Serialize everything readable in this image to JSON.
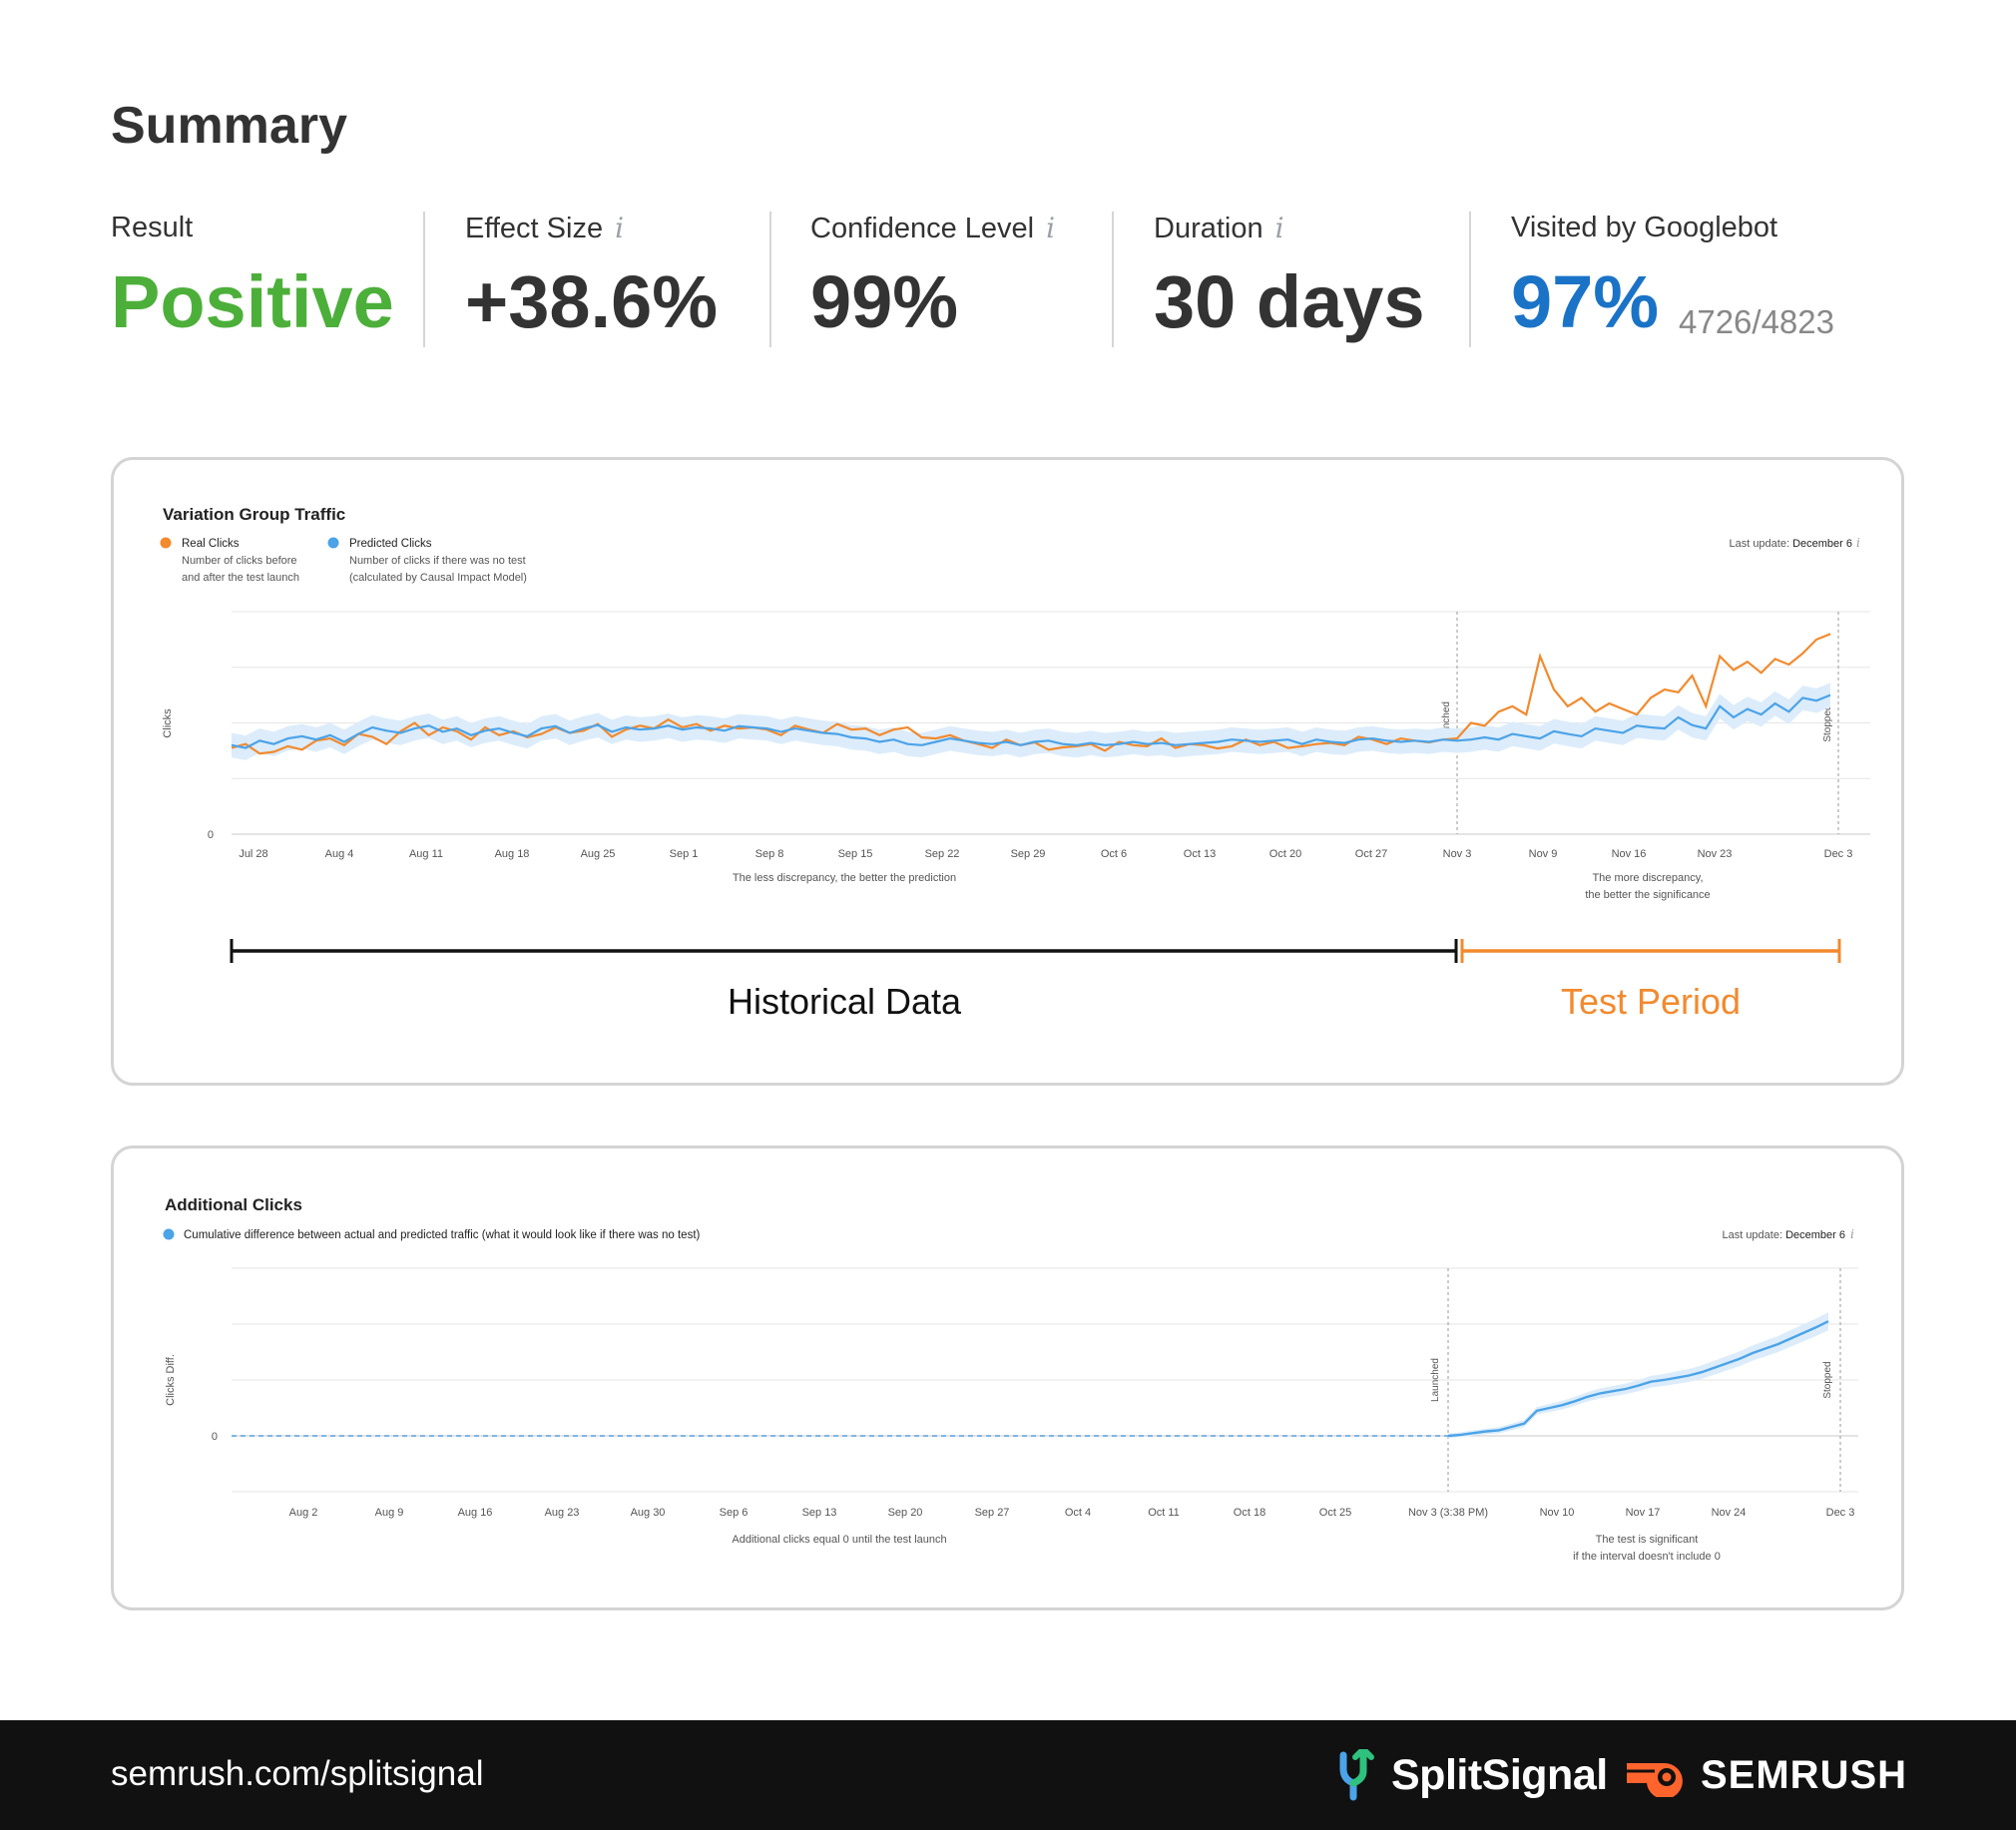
{
  "summary": {
    "title": "Summary",
    "metrics": [
      {
        "label": "Result",
        "value": "Positive",
        "color": "#4caf3a"
      },
      {
        "label": "Effect Size",
        "value": "+38.6%",
        "info": "i"
      },
      {
        "label": "Confidence Level",
        "value": "99%",
        "info": "i"
      },
      {
        "label": "Duration",
        "value": "30 days",
        "info": "i"
      },
      {
        "label": "Visited by Googlebot",
        "value": "97%",
        "sub": "4726/4823",
        "color": "#1a73c7"
      }
    ]
  },
  "colors": {
    "real": "#f28a2e",
    "predicted": "#4ba3e8",
    "band": "#dcecfb",
    "grid": "#e6e6e6",
    "historical": "#111111",
    "test_period": "#f28a2e"
  },
  "chart_data": [
    {
      "type": "line",
      "title": "Variation Group Traffic",
      "last_update_label": "Last update:",
      "last_update_value": "December 6",
      "ylabel": "Clicks",
      "yticks": [
        "0"
      ],
      "legend": [
        {
          "name": "Real Clicks",
          "desc1": "Number of clicks before",
          "desc2": "and after the test launch"
        },
        {
          "name": "Predicted Clicks",
          "desc1": "Number of clicks if there was no test",
          "desc2": "(calculated by Causal Impact Model)"
        }
      ],
      "xticks": [
        "Jul 28",
        "Aug 4",
        "Aug 11",
        "Aug 18",
        "Aug 25",
        "Sep 1",
        "Sep 8",
        "Sep 15",
        "Sep 22",
        "Sep 29",
        "Oct 6",
        "Oct 13",
        "Oct 20",
        "Oct 27",
        "Nov 3",
        "Nov 9",
        "Nov 16",
        "Nov 23",
        "Dec 3"
      ],
      "markers": [
        {
          "label": "Launched",
          "at": "Nov 3"
        },
        {
          "label": "Stopped",
          "at": "Dec 3"
        }
      ],
      "note_left": "The less discrepancy, the better the prediction",
      "note_right_1": "The more discrepancy,",
      "note_right_2": "the better the significance",
      "ylim": [
        0,
        4
      ],
      "series": [
        {
          "name": "Real Clicks",
          "values": [
            1.55,
            1.62,
            1.45,
            1.48,
            1.58,
            1.52,
            1.68,
            1.72,
            1.6,
            1.8,
            1.75,
            1.62,
            1.85,
            2.0,
            1.78,
            1.92,
            1.85,
            1.7,
            1.92,
            1.78,
            1.85,
            1.74,
            1.8,
            1.92,
            1.82,
            1.86,
            1.98,
            1.75,
            1.88,
            1.95,
            1.9,
            2.06,
            1.92,
            1.98,
            1.86,
            1.95,
            1.9,
            1.92,
            1.88,
            1.78,
            1.95,
            1.88,
            1.82,
            1.98,
            1.88,
            1.9,
            1.78,
            1.88,
            1.92,
            1.74,
            1.72,
            1.78,
            1.68,
            1.62,
            1.55,
            1.7,
            1.6,
            1.65,
            1.52,
            1.56,
            1.58,
            1.62,
            1.5,
            1.66,
            1.6,
            1.58,
            1.72,
            1.55,
            1.62,
            1.6,
            1.54,
            1.58,
            1.7,
            1.6,
            1.66,
            1.55,
            1.58,
            1.62,
            1.64,
            1.6,
            1.75,
            1.7,
            1.62,
            1.72,
            1.68,
            1.65,
            1.7,
            1.72,
            2.0,
            1.95,
            2.2,
            2.3,
            2.15,
            3.2,
            2.6,
            2.3,
            2.45,
            2.2,
            2.35,
            2.25,
            2.15,
            2.45,
            2.6,
            2.55,
            2.85,
            2.3,
            3.2,
            2.95,
            3.1,
            2.9,
            3.15,
            3.05,
            3.25,
            3.5,
            3.6
          ]
        },
        {
          "name": "Predicted Clicks",
          "values": [
            1.6,
            1.55,
            1.68,
            1.62,
            1.72,
            1.76,
            1.7,
            1.78,
            1.66,
            1.8,
            1.92,
            1.86,
            1.82,
            1.9,
            1.95,
            1.84,
            1.9,
            1.78,
            1.86,
            1.9,
            1.82,
            1.76,
            1.9,
            1.94,
            1.82,
            1.9,
            1.96,
            1.84,
            1.92,
            1.88,
            1.9,
            1.95,
            1.88,
            1.92,
            1.9,
            1.86,
            1.94,
            1.92,
            1.9,
            1.84,
            1.9,
            1.86,
            1.82,
            1.8,
            1.74,
            1.72,
            1.66,
            1.7,
            1.62,
            1.6,
            1.66,
            1.72,
            1.68,
            1.64,
            1.62,
            1.66,
            1.6,
            1.66,
            1.68,
            1.62,
            1.6,
            1.64,
            1.6,
            1.62,
            1.66,
            1.62,
            1.64,
            1.6,
            1.62,
            1.64,
            1.66,
            1.7,
            1.68,
            1.66,
            1.68,
            1.7,
            1.62,
            1.7,
            1.66,
            1.64,
            1.7,
            1.72,
            1.68,
            1.66,
            1.68,
            1.66,
            1.7,
            1.68,
            1.7,
            1.74,
            1.7,
            1.8,
            1.76,
            1.72,
            1.85,
            1.8,
            1.76,
            1.9,
            1.86,
            1.82,
            1.95,
            1.92,
            1.9,
            2.1,
            1.96,
            1.9,
            2.3,
            2.1,
            2.25,
            2.15,
            2.35,
            2.2,
            2.45,
            2.4,
            2.5
          ]
        }
      ]
    },
    {
      "type": "area",
      "title": "Additional Clicks",
      "legend_desc": "Cumulative difference between actual and predicted traffic (what it would look like if there was no test)",
      "last_update_label": "Last update:",
      "last_update_value": "December 6",
      "ylabel": "Clicks Diff.",
      "yticks": [
        "0"
      ],
      "xticks": [
        "Aug 2",
        "Aug 9",
        "Aug 16",
        "Aug 23",
        "Aug 30",
        "Sep 6",
        "Sep 13",
        "Sep 20",
        "Sep 27",
        "Oct 4",
        "Oct 11",
        "Oct 18",
        "Oct 25",
        "Nov 3 (3:38 PM)",
        "Nov 10",
        "Nov 17",
        "Nov 24",
        "Dec 3"
      ],
      "markers": [
        {
          "label": "Launched",
          "at": "Nov 3 (3:38 PM)"
        },
        {
          "label": "Stopped",
          "at": "Dec 3"
        }
      ],
      "note_left": "Additional clicks equal 0 until the test launch",
      "note_right_1": "The test is significant",
      "note_right_2": "if the interval doesn't include 0",
      "ylim": [
        -1,
        3
      ],
      "series": [
        {
          "name": "Cumulative difference",
          "values": [
            0,
            0.02,
            0.05,
            0.08,
            0.1,
            0.16,
            0.22,
            0.45,
            0.5,
            0.55,
            0.62,
            0.7,
            0.76,
            0.8,
            0.84,
            0.9,
            0.97,
            1.0,
            1.04,
            1.08,
            1.14,
            1.22,
            1.3,
            1.38,
            1.48,
            1.56,
            1.64,
            1.74,
            1.84,
            1.94,
            2.05
          ]
        }
      ]
    }
  ],
  "timeline": {
    "historical_label": "Historical Data",
    "test_label": "Test Period"
  },
  "footer": {
    "url": "semrush.com/splitsignal",
    "splitsignal": "SplitSignal",
    "semrush": "SEMRUSH"
  }
}
